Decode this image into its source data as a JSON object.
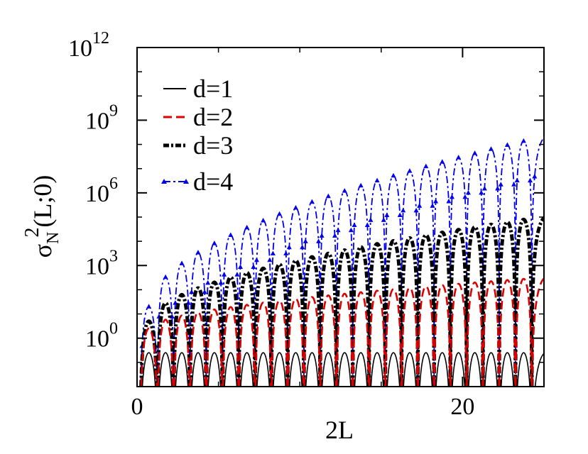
{
  "chart_data": {
    "type": "line",
    "xlabel": "2L",
    "ylabel": {
      "base": "σ",
      "sub": "N",
      "sup": "2",
      "rest": "(L;0)"
    },
    "xlim": [
      0,
      25
    ],
    "ylim_log10": [
      -2,
      12
    ],
    "y_scale": "log",
    "x_ticks": [
      0,
      20
    ],
    "x_tick_labels": [
      "0",
      "20"
    ],
    "y_ticks": [
      {
        "base": "10",
        "exp": "0",
        "log10": 0
      },
      {
        "base": "10",
        "exp": "3",
        "log10": 3
      },
      {
        "base": "10",
        "exp": "6",
        "log10": 6
      },
      {
        "base": "10",
        "exp": "9",
        "log10": 9
      },
      {
        "base": "10",
        "exp": "12",
        "log10": 12
      }
    ],
    "grid": false,
    "legend_position": "top-left",
    "series": [
      {
        "name": "d=1",
        "color": "#000000",
        "style": "solid",
        "weight": "thin",
        "peak_log10": [
          -0.6,
          -0.6
        ],
        "zeros_2L": [
          0.2,
          1.25,
          2.25,
          3.25,
          4.25,
          5.25,
          6.25,
          7.25,
          8.25,
          9.25,
          10.25,
          11.25,
          12.25,
          13.25,
          14.25,
          15.25,
          16.25,
          17.25,
          18.25,
          19.25,
          20.25,
          21.25,
          22.25,
          23.25,
          24.25
        ]
      },
      {
        "name": "d=2",
        "color": "#dd0000",
        "style": "dashed",
        "weight": "normal",
        "peak_log10": [
          0.4,
          2.5
        ],
        "zeros_2L": [
          0.2,
          1.25,
          2.25,
          3.25,
          4.25,
          5.25,
          6.25,
          7.25,
          8.25,
          9.25,
          10.25,
          11.25,
          12.25,
          13.25,
          14.25,
          15.25,
          16.25,
          17.25,
          18.25,
          19.25,
          20.25,
          21.25,
          22.25,
          23.25,
          24.25
        ]
      },
      {
        "name": "d=3",
        "color": "#000000",
        "style": "dash-dot",
        "weight": "thick",
        "peak_log10": [
          0.7,
          5.0
        ],
        "zeros_2L": [
          0.2,
          1.25,
          2.25,
          3.25,
          4.25,
          5.25,
          6.25,
          7.25,
          8.25,
          9.25,
          10.25,
          11.25,
          12.25,
          13.25,
          14.25,
          15.25,
          16.25,
          17.25,
          18.25,
          19.25,
          20.25,
          21.25,
          22.25,
          23.25,
          24.25
        ]
      },
      {
        "name": "d=4",
        "color": "#0000ee",
        "style": "dash-dot-triangle",
        "weight": "normal",
        "peak_log10": [
          1.3,
          8.3
        ],
        "zeros_2L": [
          0.2,
          1.25,
          2.25,
          3.25,
          4.25,
          5.25,
          6.25,
          7.25,
          8.25,
          9.25,
          10.25,
          11.25,
          12.25,
          13.25,
          14.25,
          15.25,
          16.25,
          17.25,
          18.25,
          19.25,
          20.25,
          21.25,
          22.25,
          23.25,
          24.25
        ]
      }
    ]
  }
}
